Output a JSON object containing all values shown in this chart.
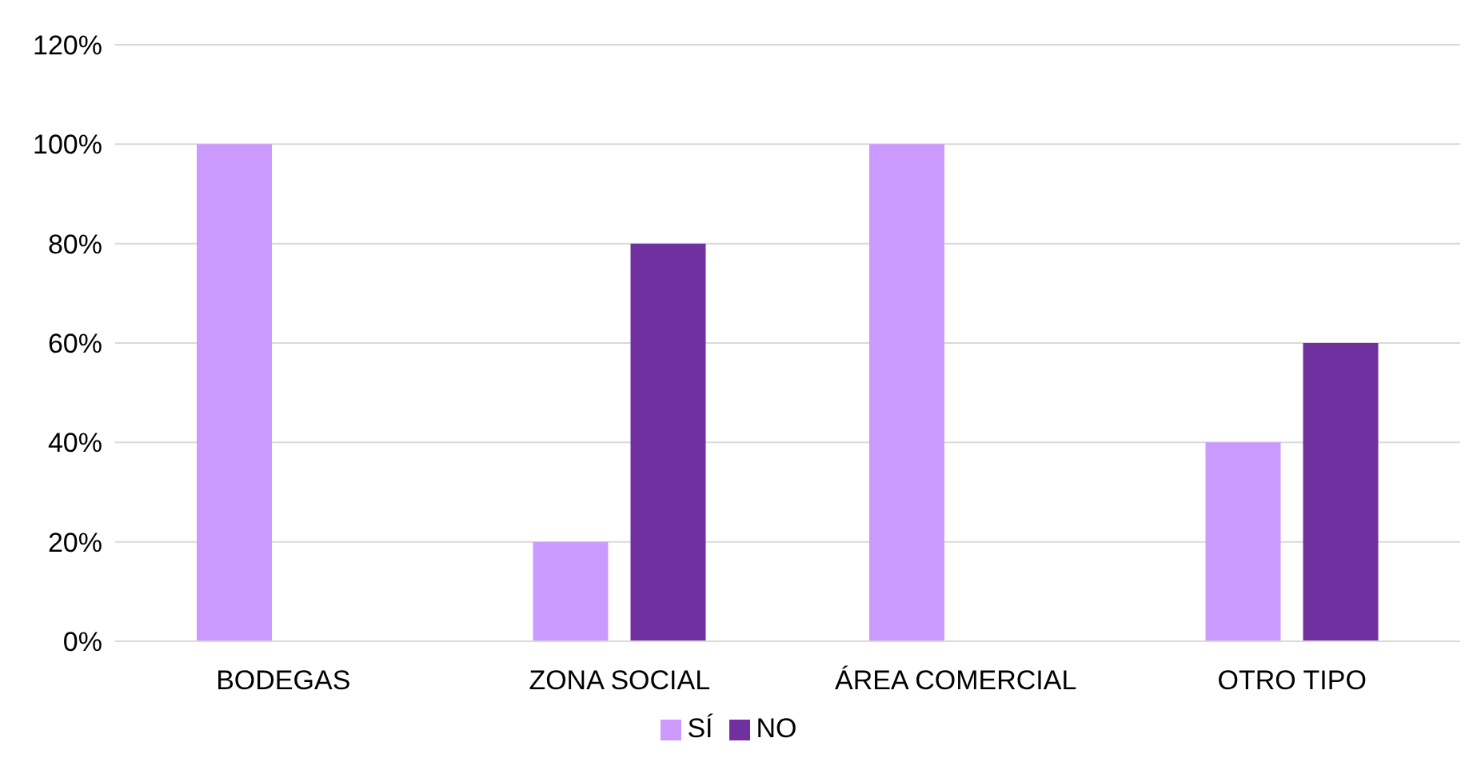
{
  "chart_data": {
    "type": "bar",
    "categories": [
      "BODEGAS",
      "ZONA SOCIAL",
      "ÁREA COMERCIAL",
      "OTRO TIPO"
    ],
    "series": [
      {
        "name": "SÍ",
        "color": "#cc99ff",
        "values": [
          100,
          20,
          100,
          40
        ]
      },
      {
        "name": "NO",
        "color": "#7030a0",
        "values": [
          0,
          80,
          0,
          60
        ]
      }
    ],
    "ylim": [
      0,
      120
    ],
    "yticks": [
      {
        "value": 0,
        "label": "0%"
      },
      {
        "value": 20,
        "label": "20%"
      },
      {
        "value": 40,
        "label": "40%"
      },
      {
        "value": 60,
        "label": "60%"
      },
      {
        "value": 80,
        "label": "80%"
      },
      {
        "value": 100,
        "label": "100%"
      },
      {
        "value": 120,
        "label": "120%"
      }
    ],
    "grid": "y",
    "legend": "bottom"
  }
}
